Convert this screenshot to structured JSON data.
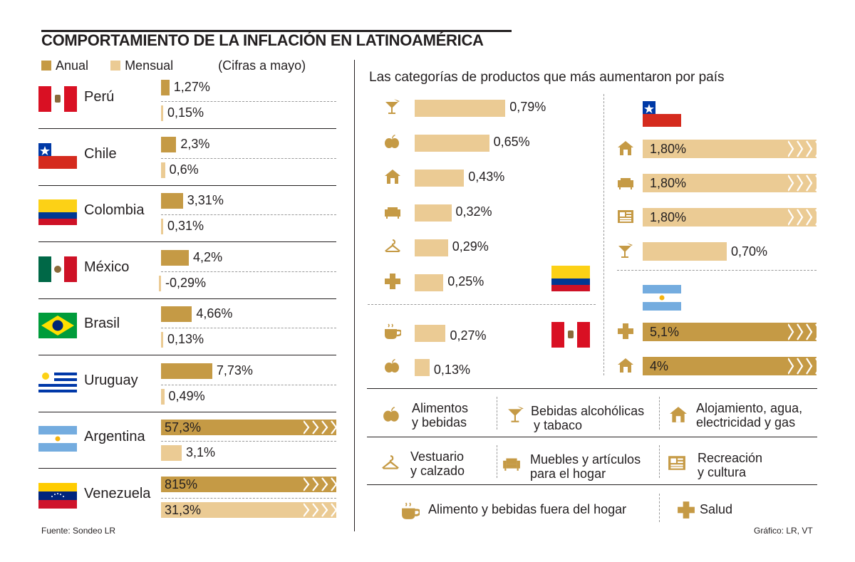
{
  "header": {
    "title": "COMPORTAMIENTO DE LA INFLACIÓN EN LATINOAMÉRICA",
    "legend_anual": "Anual",
    "legend_mensual": "Mensual",
    "note": "(Cifras a mayo)"
  },
  "right_title": "Las categorías de productos que más aumentaron por país",
  "colors": {
    "anual": "#c59a45",
    "mensual": "#ebcb94",
    "text": "#231f20"
  },
  "chart_data": [
    {
      "type": "bar",
      "title": "COMPORTAMIENTO DE LA INFLACIÓN EN LATINOAMÉRICA",
      "subtitle": "(Cifras a mayo)",
      "unit": "%",
      "categories": [
        "Perú",
        "Chile",
        "Colombia",
        "México",
        "Brasil",
        "Uruguay",
        "Argentina",
        "Venezuela"
      ],
      "series": [
        {
          "name": "Anual",
          "values": [
            1.27,
            2.3,
            3.31,
            4.2,
            4.66,
            7.73,
            57.3,
            815
          ],
          "labels": [
            "1,27%",
            "2,3%",
            "3,31%",
            "4,2%",
            "4,66%",
            "7,73%",
            "57,3%",
            "815%"
          ]
        },
        {
          "name": "Mensual",
          "values": [
            0.15,
            0.6,
            0.31,
            -0.29,
            0.13,
            0.49,
            3.1,
            31.3
          ],
          "labels": [
            "0,15%",
            "0,6%",
            "0,31%",
            "-0,29%",
            "0,13%",
            "0,49%",
            "3,1%",
            "31,3%"
          ]
        }
      ],
      "broken_scale": [
        "Argentina Anual",
        "Venezuela Anual",
        "Venezuela Mensual"
      ]
    },
    {
      "type": "bar",
      "title": "Colombia",
      "categories": [
        "Bebidas alcohólicas y tabaco",
        "Alimentos y bebidas",
        "Alojamiento, agua, electricidad y gas",
        "Muebles y artículos para el hogar",
        "Vestuario y calzado",
        "Salud"
      ],
      "values": [
        0.79,
        0.65,
        0.43,
        0.32,
        0.29,
        0.25
      ],
      "labels": [
        "0,79%",
        "0,65%",
        "0,43%",
        "0,32%",
        "0,29%",
        "0,25%"
      ]
    },
    {
      "type": "bar",
      "title": "Perú",
      "categories": [
        "Alimento y bebidas fuera del hogar",
        "Alimentos y bebidas"
      ],
      "values": [
        0.27,
        0.13
      ],
      "labels": [
        "0,27%",
        "0,13%"
      ]
    },
    {
      "type": "bar",
      "title": "Chile",
      "categories": [
        "Alojamiento, agua, electricidad y gas",
        "Muebles y artículos para el hogar",
        "Recreación y cultura",
        "Bebidas alcohólicas y tabaco"
      ],
      "values": [
        1.8,
        1.8,
        1.8,
        0.7
      ],
      "labels": [
        "1,80%",
        "1,80%",
        "1,80%",
        "0,70%"
      ]
    },
    {
      "type": "bar",
      "title": "Argentina",
      "categories": [
        "Salud",
        "Alojamiento, agua, electricidad y gas"
      ],
      "values": [
        5.1,
        4
      ],
      "labels": [
        "5,1%",
        "4%"
      ]
    }
  ],
  "category_legend": [
    {
      "icon": "apple-icon",
      "line1": "Alimentos",
      "line2": "y bebidas"
    },
    {
      "icon": "cocktail-icon",
      "line1": "Bebidas alcohólicas",
      "line2": "y tabaco"
    },
    {
      "icon": "house-icon",
      "line1": "Alojamiento, agua,",
      "line2": "electricidad y gas"
    },
    {
      "icon": "hanger-icon",
      "line1": "Vestuario",
      "line2": "y calzado"
    },
    {
      "icon": "sofa-icon",
      "line1": "Muebles y artículos",
      "line2": "para el hogar"
    },
    {
      "icon": "newspaper-icon",
      "line1": "Recreación",
      "line2": "y cultura"
    },
    {
      "icon": "coffee-cup-icon",
      "line1": "Alimento y bebidas fuera del hogar"
    },
    {
      "icon": "medical-cross-icon",
      "line1": "Salud"
    }
  ],
  "footer": {
    "source": "Fuente: Sondeo LR",
    "credit": "Gráfico: LR, VT"
  }
}
